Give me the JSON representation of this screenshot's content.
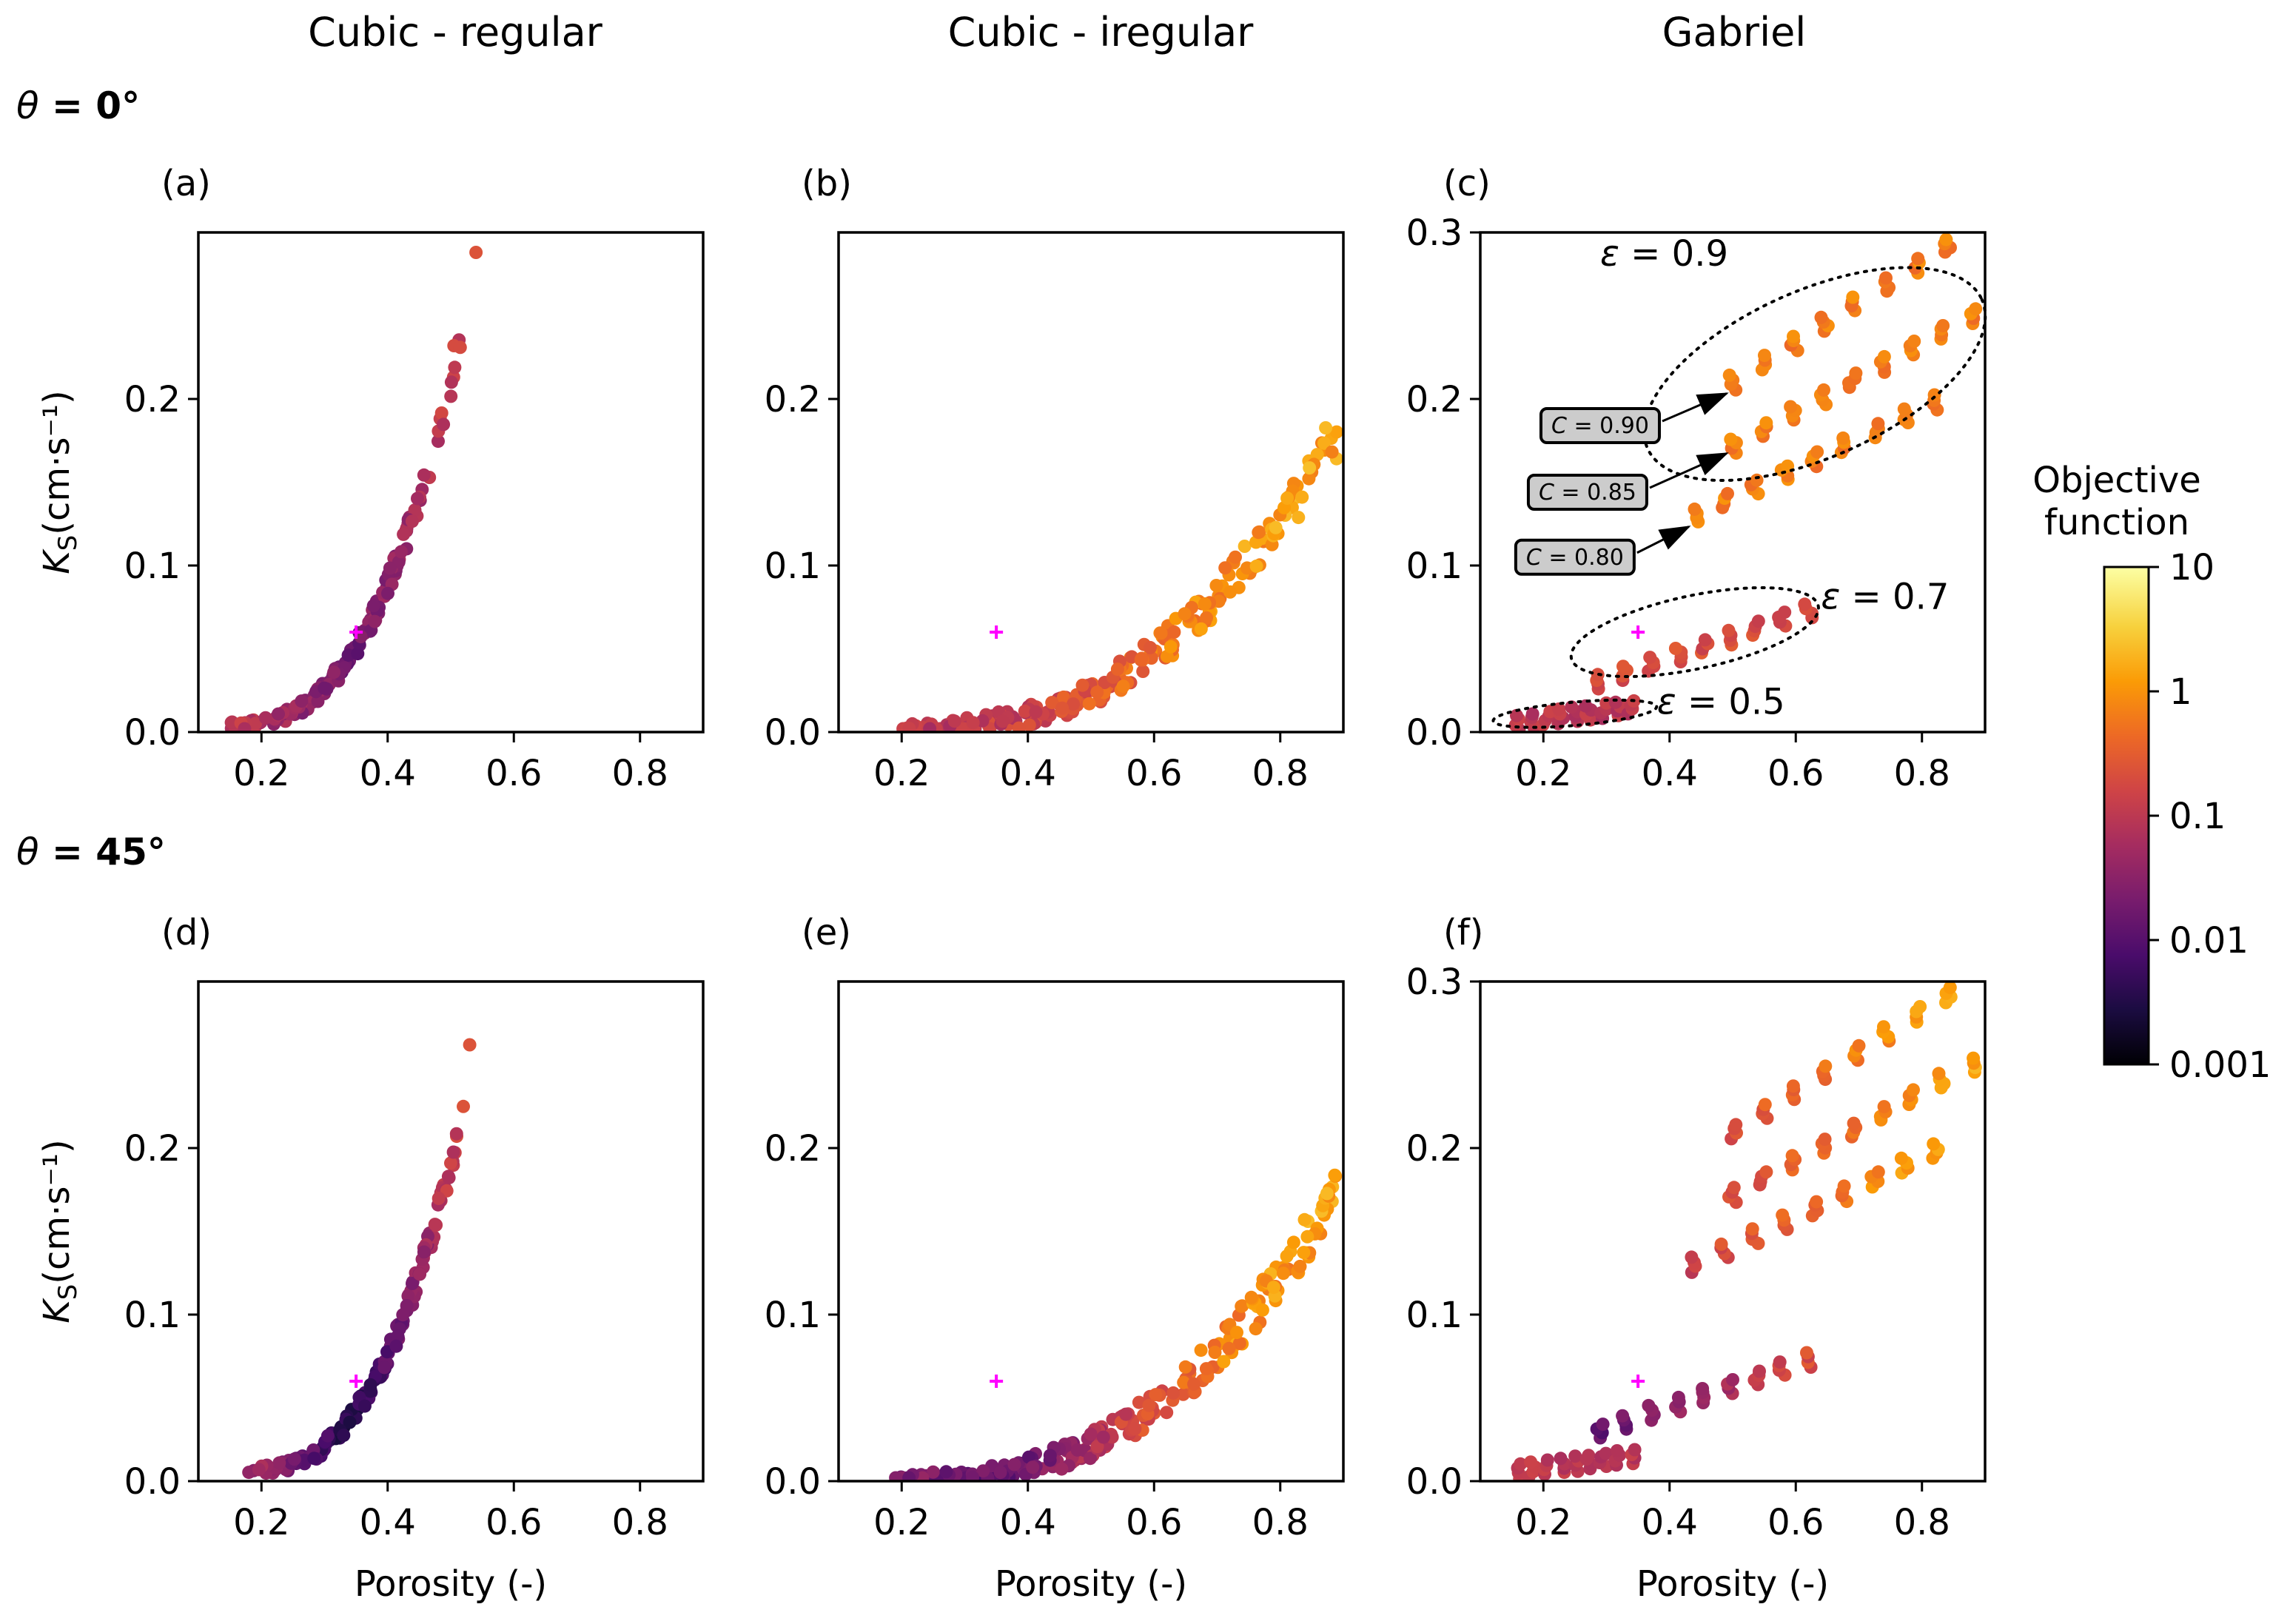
{
  "figure": {
    "column_titles": [
      "Cubic - regular",
      "Cubic - iregular",
      "Gabriel"
    ],
    "row_titles": [
      {
        "symbol": "θ",
        "value": " = 0°"
      },
      {
        "symbol": "θ",
        "value": " = 45°"
      }
    ],
    "ylabel": "K_S(cm·s⁻¹)",
    "xlabel": "Porosity (-)",
    "colorbar": {
      "title_line1": "Objective",
      "title_line2": "function",
      "ticks": [
        "10",
        "1",
        "0.1",
        "0.01",
        "0.001"
      ],
      "scale": "log",
      "range": [
        0.001,
        10
      ],
      "colormap": "inferno",
      "colors": [
        "#000004",
        "#1b0c41",
        "#4a0c6b",
        "#781c6d",
        "#a52c60",
        "#cf4446",
        "#ed6925",
        "#fb9b06",
        "#f7d13d",
        "#fcffa4"
      ]
    },
    "true_point_color": "#ff00ff"
  },
  "chart_data": [
    {
      "panel": "(a)",
      "type": "scatter",
      "row": 0,
      "col": 0,
      "title": "Cubic - regular",
      "theta": "θ = 0°",
      "xlim": [
        0.1,
        0.9
      ],
      "ylim": [
        0,
        0.3
      ],
      "xticks": [
        "0.2",
        "0.4",
        "0.6",
        "0.8"
      ],
      "yticks": [
        "0.0",
        "0.1",
        "0.2"
      ],
      "xlabel": "",
      "ylabel": "K_S(cm·s⁻¹)",
      "true_point": [
        0.35,
        0.06
      ],
      "clouds": [
        {
          "kind": "curve",
          "x_range": [
            0.15,
            0.515
          ],
          "a": 0.004,
          "b": 0.23,
          "p": 2.6,
          "n": 150,
          "spread": 0.007,
          "seed": 11,
          "color_profile": [
            [
              0.15,
              0.12
            ],
            [
              0.28,
              0.03
            ],
            [
              0.35,
              0.018
            ],
            [
              0.42,
              0.05
            ],
            [
              0.52,
              0.15
            ]
          ],
          "cjit": 0.25
        },
        {
          "kind": "points",
          "pts": [
            [
              0.54,
              0.288,
              0.25
            ],
            [
              0.505,
              0.232,
              0.2
            ],
            [
              0.515,
              0.231,
              0.2
            ]
          ]
        }
      ]
    },
    {
      "panel": "(b)",
      "type": "scatter",
      "row": 0,
      "col": 1,
      "title": "Cubic - iregular",
      "theta": "θ = 0°",
      "xlim": [
        0.1,
        0.9
      ],
      "ylim": [
        0,
        0.3
      ],
      "xticks": [
        "0.2",
        "0.4",
        "0.6",
        "0.8"
      ],
      "yticks": [
        "0.0",
        "0.1",
        "0.2"
      ],
      "xlabel": "",
      "ylabel": "",
      "true_point": [
        0.35,
        0.06
      ],
      "clouds": [
        {
          "kind": "curve",
          "x_range": [
            0.2,
            0.89
          ],
          "a": 0.002,
          "b": 0.18,
          "p": 2.5,
          "n": 230,
          "spread": 0.012,
          "seed": 23,
          "color_profile": [
            [
              0.2,
              0.08
            ],
            [
              0.4,
              0.15
            ],
            [
              0.55,
              0.4
            ],
            [
              0.7,
              1.0
            ],
            [
              0.89,
              1.5
            ]
          ],
          "cjit": 0.3
        }
      ]
    },
    {
      "panel": "(c)",
      "type": "scatter",
      "row": 0,
      "col": 2,
      "title": "Gabriel",
      "theta": "θ = 0°",
      "xlim": [
        0.1,
        0.9
      ],
      "ylim": [
        0,
        0.3
      ],
      "xticks": [
        "0.2",
        "0.4",
        "0.6",
        "0.8"
      ],
      "yticks": [
        "0.0",
        "0.1",
        "0.2",
        "0.3"
      ],
      "xlabel": "",
      "ylabel": "",
      "true_point": [
        0.35,
        0.06
      ],
      "clouds": [
        {
          "kind": "bands",
          "seed": 31,
          "bands": [
            {
              "x0": 0.16,
              "x1": 0.34,
              "y0": 0.006,
              "y1": 0.015,
              "steps": 9,
              "c": 0.1
            },
            {
              "x0": 0.29,
              "x1": 0.62,
              "y0": 0.03,
              "y1": 0.073,
              "steps": 9,
              "c": 0.2
            },
            {
              "x0": 0.5,
              "x1": 0.84,
              "y0": 0.21,
              "y1": 0.292,
              "steps": 8,
              "c": 0.7
            },
            {
              "x0": 0.5,
              "x1": 0.88,
              "y0": 0.172,
              "y1": 0.25,
              "steps": 9,
              "c": 0.7
            },
            {
              "x0": 0.44,
              "x1": 0.82,
              "y0": 0.13,
              "y1": 0.198,
              "steps": 9,
              "c": 0.7
            }
          ]
        }
      ],
      "annotations": {
        "epsilon": [
          {
            "symbol": "ε",
            "text": " = 0.9",
            "x": 0.29,
            "y": 0.28
          },
          {
            "symbol": "ε",
            "text": " = 0.7",
            "x": 0.64,
            "y": 0.074
          },
          {
            "symbol": "ε",
            "text": " = 0.5",
            "x": 0.38,
            "y": 0.011
          }
        ],
        "C": [
          {
            "symbol": "C",
            "text": " = 0.90",
            "x": 0.29,
            "y": 0.184,
            "target": [
              0.5,
              0.206
            ]
          },
          {
            "symbol": "C",
            "text": " = 0.85",
            "x": 0.27,
            "y": 0.144,
            "target": [
              0.5,
              0.17
            ]
          },
          {
            "symbol": "C",
            "text": " = 0.80",
            "x": 0.25,
            "y": 0.105,
            "target": [
              0.44,
              0.126
            ]
          }
        ],
        "ellipses": [
          {
            "cx": 0.63,
            "cy": 0.215,
            "rx": 0.29,
            "ry": 0.05,
            "angle_deg": 24
          },
          {
            "cx": 0.44,
            "cy": 0.06,
            "rx": 0.2,
            "ry": 0.022,
            "angle_deg": 12
          },
          {
            "cx": 0.25,
            "cy": 0.011,
            "rx": 0.13,
            "ry": 0.007,
            "angle_deg": 5
          }
        ]
      }
    },
    {
      "panel": "(d)",
      "type": "scatter",
      "row": 1,
      "col": 0,
      "title": "Cubic - regular",
      "theta": "θ = 45°",
      "xlim": [
        0.1,
        0.9
      ],
      "ylim": [
        0,
        0.3
      ],
      "xticks": [
        "0.2",
        "0.4",
        "0.6",
        "0.8"
      ],
      "yticks": [
        "0.0",
        "0.1",
        "0.2"
      ],
      "xlabel": "Porosity (-)",
      "ylabel": "K_S(cm·s⁻¹)",
      "true_point": [
        0.35,
        0.06
      ],
      "clouds": [
        {
          "kind": "curve",
          "x_range": [
            0.18,
            0.51
          ],
          "a": 0.007,
          "b": 0.205,
          "p": 2.6,
          "n": 160,
          "spread": 0.007,
          "seed": 41,
          "color_profile": [
            [
              0.18,
              0.06
            ],
            [
              0.28,
              0.01
            ],
            [
              0.33,
              0.003
            ],
            [
              0.4,
              0.012
            ],
            [
              0.46,
              0.05
            ],
            [
              0.51,
              0.14
            ]
          ],
          "cjit": 0.25
        },
        {
          "kind": "points",
          "pts": [
            [
              0.53,
              0.262,
              0.25
            ],
            [
              0.52,
              0.225,
              0.25
            ]
          ]
        }
      ]
    },
    {
      "panel": "(e)",
      "type": "scatter",
      "row": 1,
      "col": 1,
      "title": "Cubic - iregular",
      "theta": "θ = 45°",
      "xlim": [
        0.1,
        0.9
      ],
      "ylim": [
        0,
        0.3
      ],
      "xticks": [
        "0.2",
        "0.4",
        "0.6",
        "0.8"
      ],
      "yticks": [
        "0.0",
        "0.1",
        "0.2"
      ],
      "xlabel": "Porosity (-)",
      "ylabel": "",
      "true_point": [
        0.35,
        0.06
      ],
      "clouds": [
        {
          "kind": "curve",
          "x_range": [
            0.19,
            0.89
          ],
          "a": 0.001,
          "b": 0.175,
          "p": 2.6,
          "n": 240,
          "spread": 0.011,
          "seed": 53,
          "color_profile": [
            [
              0.19,
              0.03
            ],
            [
              0.35,
              0.012
            ],
            [
              0.45,
              0.03
            ],
            [
              0.55,
              0.15
            ],
            [
              0.7,
              0.8
            ],
            [
              0.89,
              1.4
            ]
          ],
          "cjit": 0.3
        }
      ]
    },
    {
      "panel": "(f)",
      "type": "scatter",
      "row": 1,
      "col": 2,
      "title": "Gabriel",
      "theta": "θ = 45°",
      "xlim": [
        0.1,
        0.9
      ],
      "ylim": [
        0,
        0.3
      ],
      "xticks": [
        "0.2",
        "0.4",
        "0.6",
        "0.8"
      ],
      "yticks": [
        "0.0",
        "0.1",
        "0.2",
        "0.3"
      ],
      "xlabel": "Porosity (-)",
      "ylabel": "",
      "true_point": [
        0.35,
        0.06
      ],
      "clouds": [
        {
          "kind": "bands",
          "seed": 61,
          "bands": [
            {
              "x0": 0.16,
              "x1": 0.34,
              "y0": 0.006,
              "y1": 0.015,
              "steps": 9,
              "c": 0.1
            },
            {
              "x0": 0.29,
              "x1": 0.62,
              "y0": 0.03,
              "y1": 0.073,
              "steps": 9,
              "c": 0.07,
              "cgrad": [
                0.012,
                0.2
              ]
            },
            {
              "x0": 0.5,
              "x1": 0.84,
              "y0": 0.21,
              "y1": 0.292,
              "steps": 8,
              "c": 0.7,
              "cgrad": [
                0.25,
                1.5
              ]
            },
            {
              "x0": 0.5,
              "x1": 0.88,
              "y0": 0.172,
              "y1": 0.25,
              "steps": 9,
              "c": 0.7,
              "cgrad": [
                0.2,
                1.5
              ]
            },
            {
              "x0": 0.44,
              "x1": 0.82,
              "y0": 0.13,
              "y1": 0.198,
              "steps": 9,
              "c": 0.7,
              "cgrad": [
                0.15,
                1.5
              ]
            }
          ]
        }
      ]
    }
  ]
}
